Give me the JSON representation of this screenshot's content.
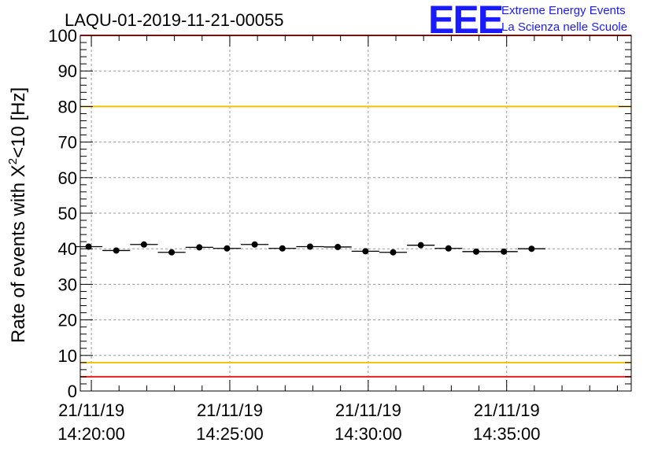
{
  "header": {
    "run_label": "LAQU-01-2019-11-21-00055",
    "brand_logo": "EEE",
    "brand_line1": "Extreme Energy Events",
    "brand_line2": "La Scienza nelle Scuole",
    "brand_color": "#1a1aff"
  },
  "chart_data": {
    "type": "scatter",
    "title": "LAQU-01-2019-11-21-00055",
    "ylabel_main": "Rate of events with X",
    "ylabel_sup": "2",
    "ylabel_tail": "<10 [Hz]",
    "ylim": [
      0,
      100
    ],
    "y_ticks": [
      "0",
      "10",
      "20",
      "30",
      "40",
      "50",
      "60",
      "70",
      "80",
      "90",
      "100"
    ],
    "x_range_min": [
      19.6,
      39.5
    ],
    "x_ticks": [
      {
        "t": 20,
        "date": "21/11/19",
        "time": "14:20:00"
      },
      {
        "t": 25,
        "date": "21/11/19",
        "time": "14:25:00"
      },
      {
        "t": 30,
        "date": "21/11/19",
        "time": "14:30:00"
      },
      {
        "t": 35,
        "date": "21/11/19",
        "time": "14:35:00"
      }
    ],
    "grid": true,
    "bin_width_min": 1,
    "points": [
      {
        "x": 19.9,
        "y": 40.6
      },
      {
        "x": 20.9,
        "y": 39.5
      },
      {
        "x": 21.9,
        "y": 41.2
      },
      {
        "x": 22.9,
        "y": 39.0
      },
      {
        "x": 23.9,
        "y": 40.4
      },
      {
        "x": 24.9,
        "y": 40.1
      },
      {
        "x": 25.9,
        "y": 41.2
      },
      {
        "x": 26.9,
        "y": 40.1
      },
      {
        "x": 27.9,
        "y": 40.6
      },
      {
        "x": 28.9,
        "y": 40.5
      },
      {
        "x": 29.9,
        "y": 39.3
      },
      {
        "x": 30.9,
        "y": 39.0
      },
      {
        "x": 31.9,
        "y": 41.0
      },
      {
        "x": 32.9,
        "y": 40.1
      },
      {
        "x": 33.9,
        "y": 39.2
      },
      {
        "x": 34.9,
        "y": 39.2
      },
      {
        "x": 35.9,
        "y": 40.0
      }
    ],
    "reference_lines": [
      {
        "name": "upper-red",
        "y": 100,
        "color": "#e8231f"
      },
      {
        "name": "upper-yellow",
        "y": 80,
        "color": "#f2c200"
      },
      {
        "name": "lower-yellow",
        "y": 8,
        "color": "#f2c200"
      },
      {
        "name": "lower-red",
        "y": 4,
        "color": "#e8231f"
      }
    ]
  }
}
